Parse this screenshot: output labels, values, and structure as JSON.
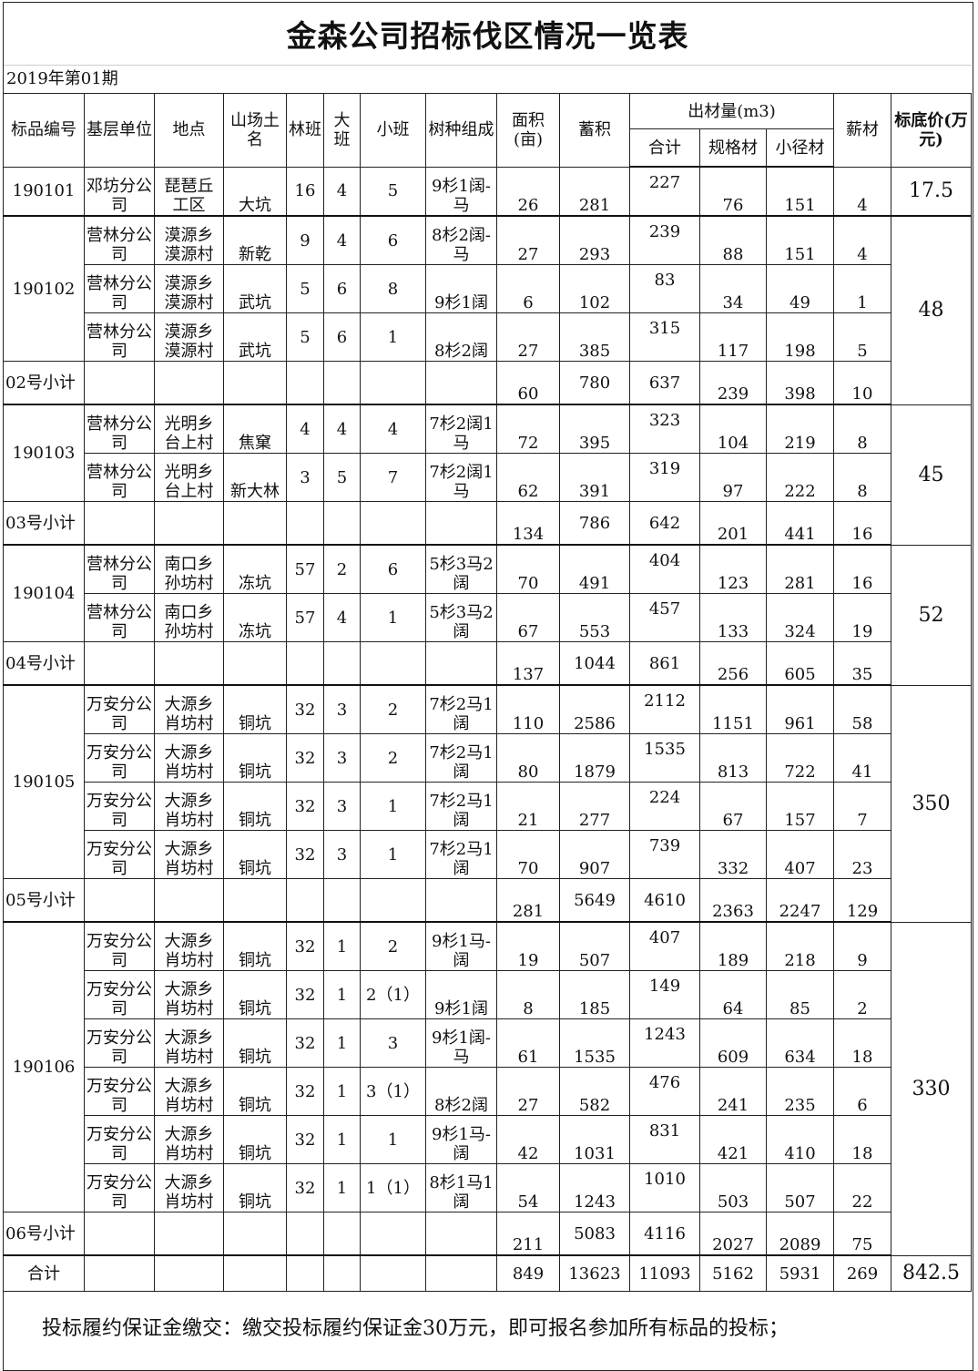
{
  "title": "金森公司招标伐区情况一览表",
  "period": "2019年第01期",
  "headers": {
    "lot_id": "标品编号",
    "unit": "基层单位",
    "location": "地点",
    "site_name": "山场土名",
    "forest_class": "林班",
    "big_class": "大班",
    "small_class": "小班",
    "species": "树种组成",
    "area": "面积(亩)",
    "volume": "蓄积",
    "output": "出材量(m3)",
    "output_total": "合计",
    "standard": "规格材",
    "small": "小径材",
    "firewood": "薪材",
    "reserve_price": "标底价(万元)"
  },
  "groups": [
    {
      "id": "190101",
      "price": "17.5",
      "rows": [
        [
          "邓坊分公司",
          "琵琶丘工区",
          "大坑",
          "16",
          "4",
          "5",
          "9杉1阔-马",
          "26",
          "281",
          "227",
          "76",
          "151",
          "4"
        ]
      ],
      "subtotal": null
    },
    {
      "id": "190102",
      "price": "48",
      "rows": [
        [
          "营林分公司",
          "漠源乡漠源村",
          "新乾",
          "9",
          "4",
          "6",
          "8杉2阔-马",
          "27",
          "293",
          "239",
          "88",
          "151",
          "4"
        ],
        [
          "营林分公司",
          "漠源乡漠源村",
          "武坑",
          "5",
          "6",
          "8",
          "9杉1阔",
          "6",
          "102",
          "83",
          "34",
          "49",
          "1"
        ],
        [
          "营林分公司",
          "漠源乡漠源村",
          "武坑",
          "5",
          "6",
          "1",
          "8杉2阔",
          "27",
          "385",
          "315",
          "117",
          "198",
          "5"
        ]
      ],
      "subtotal": [
        "02号小计",
        "60",
        "780",
        "637",
        "239",
        "398",
        "10"
      ]
    },
    {
      "id": "190103",
      "price": "45",
      "rows": [
        [
          "营林分公司",
          "光明乡台上村",
          "焦窠",
          "4",
          "4",
          "4",
          "7杉2阔1马",
          "72",
          "395",
          "323",
          "104",
          "219",
          "8"
        ],
        [
          "营林分公司",
          "光明乡台上村",
          "新大林",
          "3",
          "5",
          "7",
          "7杉2阔1马",
          "62",
          "391",
          "319",
          "97",
          "222",
          "8"
        ]
      ],
      "subtotal": [
        "03号小计",
        "134",
        "786",
        "642",
        "201",
        "441",
        "16"
      ]
    },
    {
      "id": "190104",
      "price": "52",
      "rows": [
        [
          "营林分公司",
          "南口乡孙坊村",
          "冻坑",
          "57",
          "2",
          "6",
          "5杉3马2阔",
          "70",
          "491",
          "404",
          "123",
          "281",
          "16"
        ],
        [
          "营林分公司",
          "南口乡孙坊村",
          "冻坑",
          "57",
          "4",
          "1",
          "5杉3马2阔",
          "67",
          "553",
          "457",
          "133",
          "324",
          "19"
        ]
      ],
      "subtotal": [
        "04号小计",
        "137",
        "1044",
        "861",
        "256",
        "605",
        "35"
      ]
    },
    {
      "id": "190105",
      "price": "350",
      "rows": [
        [
          "万安分公司",
          "大源乡肖坊村",
          "铜坑",
          "32",
          "3",
          "2",
          "7杉2马1阔",
          "110",
          "2586",
          "2112",
          "1151",
          "961",
          "58"
        ],
        [
          "万安分公司",
          "大源乡肖坊村",
          "铜坑",
          "32",
          "3",
          "2",
          "7杉2马1阔",
          "80",
          "1879",
          "1535",
          "813",
          "722",
          "41"
        ],
        [
          "万安分公司",
          "大源乡肖坊村",
          "铜坑",
          "32",
          "3",
          "1",
          "7杉2马1阔",
          "21",
          "277",
          "224",
          "67",
          "157",
          "7"
        ],
        [
          "万安分公司",
          "大源乡肖坊村",
          "铜坑",
          "32",
          "3",
          "1",
          "7杉2马1阔",
          "70",
          "907",
          "739",
          "332",
          "407",
          "23"
        ]
      ],
      "subtotal": [
        "05号小计",
        "281",
        "5649",
        "4610",
        "2363",
        "2247",
        "129"
      ]
    },
    {
      "id": "190106",
      "price": "330",
      "rows": [
        [
          "万安分公司",
          "大源乡肖坊村",
          "铜坑",
          "32",
          "1",
          "2",
          "9杉1马-阔",
          "19",
          "507",
          "407",
          "189",
          "218",
          "9"
        ],
        [
          "万安分公司",
          "大源乡肖坊村",
          "铜坑",
          "32",
          "1",
          "2（1）",
          "9杉1阔",
          "8",
          "185",
          "149",
          "64",
          "85",
          "2"
        ],
        [
          "万安分公司",
          "大源乡肖坊村",
          "铜坑",
          "32",
          "1",
          "3",
          "9杉1阔-马",
          "61",
          "1535",
          "1243",
          "609",
          "634",
          "18"
        ],
        [
          "万安分公司",
          "大源乡肖坊村",
          "铜坑",
          "32",
          "1",
          "3（1）",
          "8杉2阔",
          "27",
          "582",
          "476",
          "241",
          "235",
          "6"
        ],
        [
          "万安分公司",
          "大源乡肖坊村",
          "铜坑",
          "32",
          "1",
          "1",
          "9杉1马-阔",
          "42",
          "1031",
          "831",
          "421",
          "410",
          "18"
        ],
        [
          "万安分公司",
          "大源乡肖坊村",
          "铜坑",
          "32",
          "1",
          "1（1）",
          "8杉1马1阔",
          "54",
          "1243",
          "1010",
          "503",
          "507",
          "22"
        ]
      ],
      "subtotal": [
        "06号小计",
        "211",
        "5083",
        "4116",
        "2027",
        "2089",
        "75"
      ]
    }
  ],
  "total": [
    "合计",
    "849",
    "13623",
    "11093",
    "5162",
    "5931",
    "269",
    "842.5"
  ],
  "footer": "投标履约保证金缴交：缴交投标履约保证金30万元，即可报名参加所有标品的投标；"
}
